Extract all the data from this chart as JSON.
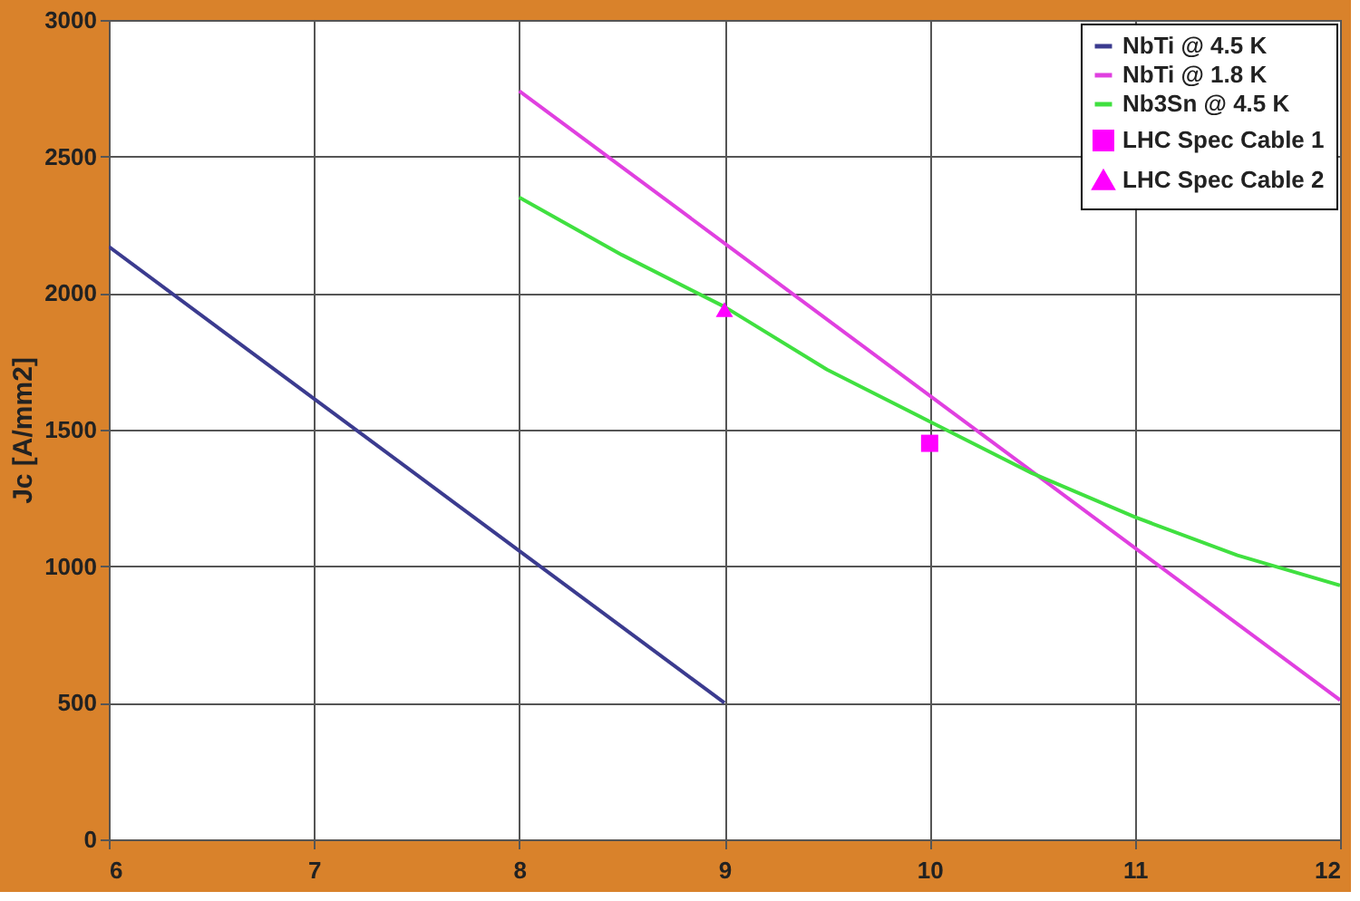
{
  "chart_data": {
    "type": "line",
    "ylabel": "Jc [A/mm2]",
    "xlim": [
      6,
      12
    ],
    "xticks": [
      6,
      7,
      8,
      9,
      10,
      11,
      12
    ],
    "ylim": [
      0,
      3000
    ],
    "yticks": [
      0,
      500,
      1000,
      1500,
      2000,
      2500,
      3000
    ],
    "grid": true,
    "legend": "top right",
    "series": [
      {
        "name": "NbTi @ 4.5 K",
        "color": "#3b3b8f",
        "marker": "none",
        "x": [
          6,
          9
        ],
        "values": [
          2170,
          500
        ]
      },
      {
        "name": "NbTi @ 1.8 K",
        "color": "#e040e0",
        "marker": "none",
        "x": [
          8,
          12
        ],
        "values": [
          2740,
          510
        ]
      },
      {
        "name": "Nb3Sn @ 4.5 K",
        "color": "#40e040",
        "marker": "none",
        "x": [
          8,
          8.5,
          9,
          9.5,
          10,
          10.5,
          11,
          11.5,
          12
        ],
        "values": [
          2350,
          2140,
          1950,
          1720,
          1530,
          1340,
          1180,
          1040,
          930
        ]
      },
      {
        "name": "LHC Spec Cable 1",
        "color": "#ff00ff",
        "type": "scatter",
        "marker": "square",
        "x": [
          10
        ],
        "values": [
          1450
        ]
      },
      {
        "name": "LHC Spec Cable 2",
        "color": "#ff00ff",
        "type": "scatter",
        "marker": "triangle",
        "x": [
          9
        ],
        "values": [
          1940
        ]
      }
    ]
  }
}
